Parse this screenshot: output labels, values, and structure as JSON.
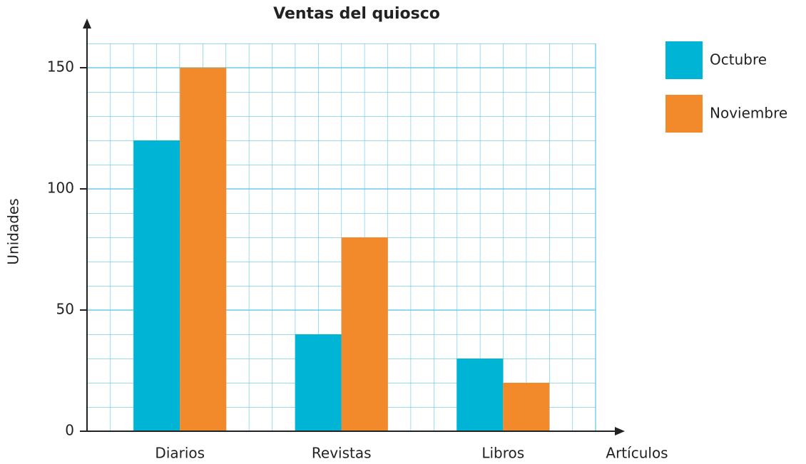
{
  "chart_data": {
    "type": "bar",
    "title": "Ventas del quiosco",
    "x_label": "Artículos",
    "y_label": "Unidades",
    "categories": [
      "Diarios",
      "Revistas",
      "Libros"
    ],
    "series": [
      {
        "name": "Octubre",
        "color": "#00b4d5",
        "values": [
          120,
          40,
          30
        ]
      },
      {
        "name": "Noviembre",
        "color": "#f2892a",
        "values": [
          150,
          80,
          20
        ]
      }
    ],
    "ylim": [
      0,
      160
    ],
    "yticks": [
      0,
      50,
      100,
      150
    ],
    "grid": true,
    "legend": "right"
  }
}
